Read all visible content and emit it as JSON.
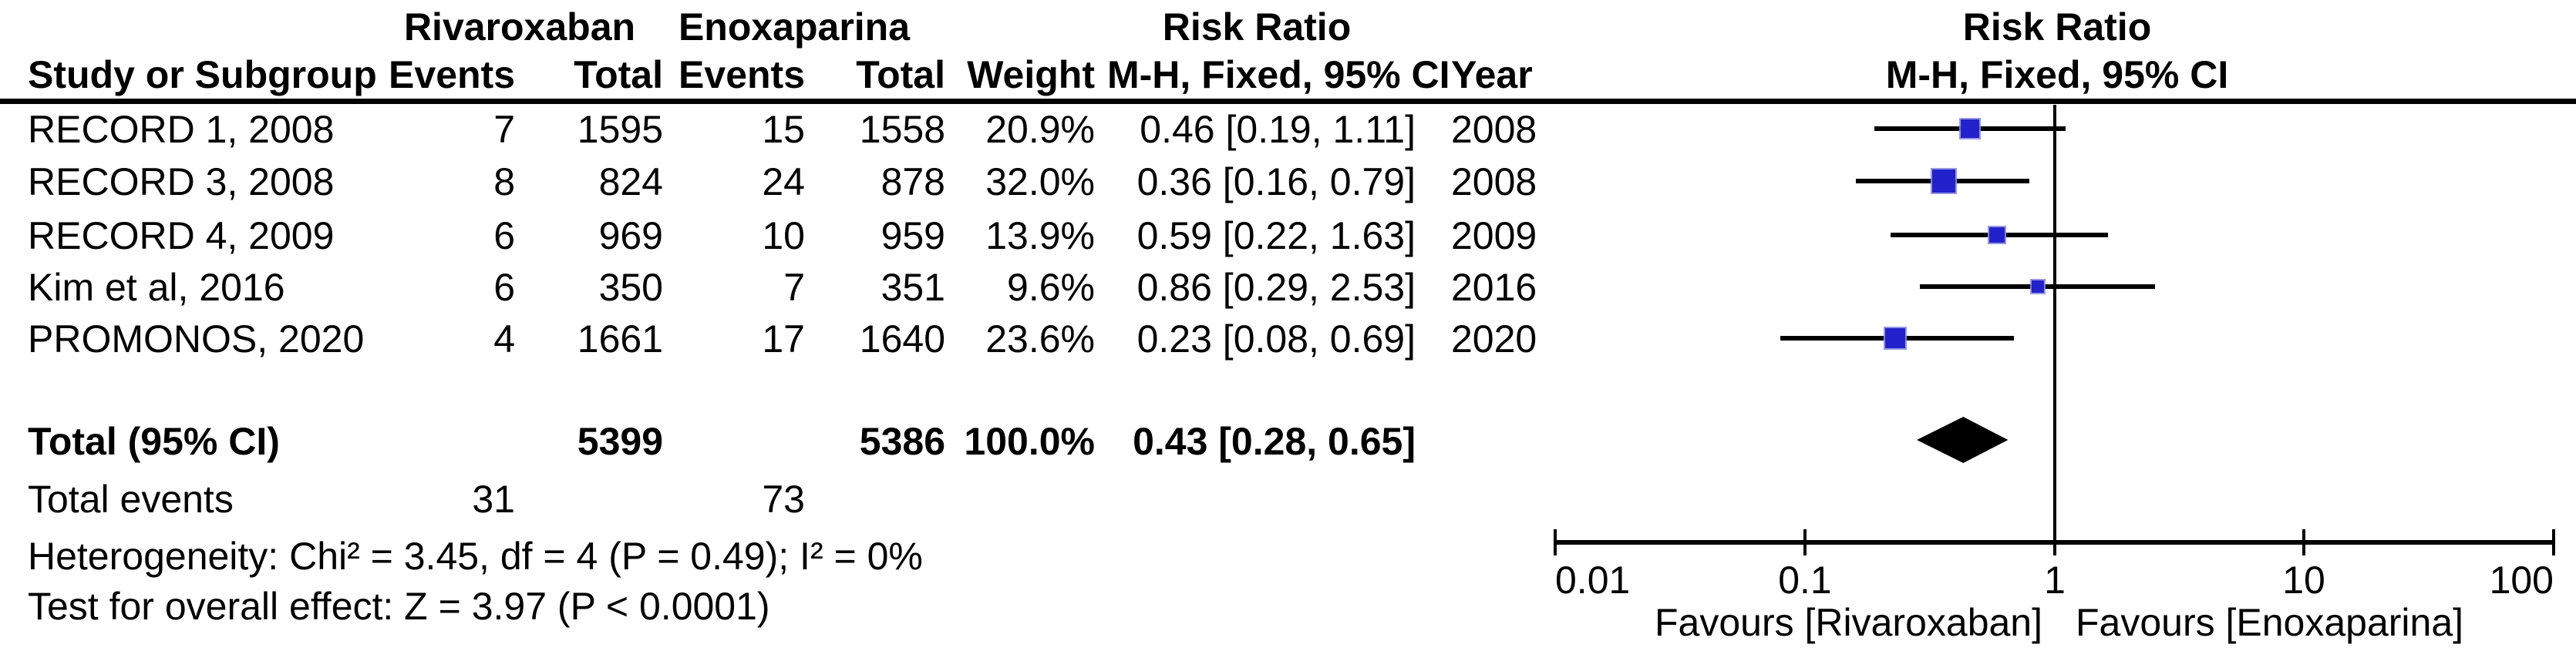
{
  "table": {
    "group_headers": {
      "treatment": "Rivaroxaban",
      "control": "Enoxaparina",
      "risk_ratio": "Risk Ratio"
    },
    "columns": {
      "study": "Study or Subgroup",
      "events1": "Events",
      "total1": "Total",
      "events2": "Events",
      "total2": "Total",
      "weight": "Weight",
      "risk_ratio": "M-H, Fixed, 95% CI",
      "year": "Year"
    },
    "rows": [
      {
        "study": "RECORD 1, 2008",
        "events1": "7",
        "total1": "1595",
        "events2": "15",
        "total2": "1558",
        "weight": "20.9%",
        "risk_ratio": "0.46 [0.19, 1.11]",
        "year": "2008"
      },
      {
        "study": "RECORD 3, 2008",
        "events1": "8",
        "total1": "824",
        "events2": "24",
        "total2": "878",
        "weight": "32.0%",
        "risk_ratio": "0.36 [0.16, 0.79]",
        "year": "2008"
      },
      {
        "study": "RECORD 4, 2009",
        "events1": "6",
        "total1": "969",
        "events2": "10",
        "total2": "959",
        "weight": "13.9%",
        "risk_ratio": "0.59 [0.22, 1.63]",
        "year": "2009"
      },
      {
        "study": "Kim et al, 2016",
        "events1": "6",
        "total1": "350",
        "events2": "7",
        "total2": "351",
        "weight": "9.6%",
        "risk_ratio": "0.86 [0.29, 2.53]",
        "year": "2016"
      },
      {
        "study": "PROMONOS, 2020",
        "events1": "4",
        "total1": "1661",
        "events2": "17",
        "total2": "1640",
        "weight": "23.6%",
        "risk_ratio": "0.23 [0.08, 0.69]",
        "year": "2020"
      }
    ],
    "total_row": {
      "label": "Total (95% CI)",
      "total1": "5399",
      "total2": "5386",
      "weight": "100.0%",
      "risk_ratio": "0.43 [0.28, 0.65]"
    },
    "total_events_row": {
      "label": "Total events",
      "events1": "31",
      "events2": "73"
    },
    "heterogeneity": "Heterogeneity: Chi² = 3.45, df = 4 (P = 0.49); I² = 0%",
    "overall_effect": "Test for overall effect: Z = 3.97 (P < 0.0001)"
  },
  "plot": {
    "header_line1": "Risk Ratio",
    "header_line2": "M-H, Fixed, 95% CI",
    "favours_left": "Favours [Rivaroxaban]",
    "favours_right": "Favours [Enoxaparina]",
    "marker_color": "#2222CC",
    "line_color": "#000000",
    "diamond_color": "#000000"
  },
  "chart_data": {
    "type": "forest",
    "effect_measure": "Risk Ratio, M-H, Fixed, 95% CI",
    "x_scale": "log10",
    "x_range": [
      0.01,
      100
    ],
    "x_ticks": [
      "0.01",
      "0.1",
      "1",
      "10",
      "100"
    ],
    "null_line": 1,
    "studies": [
      {
        "name": "RECORD 1, 2008",
        "rr": 0.46,
        "ci_low": 0.19,
        "ci_high": 1.11,
        "weight_pct": 20.9,
        "year": 2008
      },
      {
        "name": "RECORD 3, 2008",
        "rr": 0.36,
        "ci_low": 0.16,
        "ci_high": 0.79,
        "weight_pct": 32.0,
        "year": 2008
      },
      {
        "name": "RECORD 4, 2009",
        "rr": 0.59,
        "ci_low": 0.22,
        "ci_high": 1.63,
        "weight_pct": 13.9,
        "year": 2009
      },
      {
        "name": "Kim et al, 2016",
        "rr": 0.86,
        "ci_low": 0.29,
        "ci_high": 2.53,
        "weight_pct": 9.6,
        "year": 2016
      },
      {
        "name": "PROMONOS, 2020",
        "rr": 0.23,
        "ci_low": 0.08,
        "ci_high": 0.69,
        "weight_pct": 23.6,
        "year": 2020
      }
    ],
    "total": {
      "rr": 0.43,
      "ci_low": 0.28,
      "ci_high": 0.65,
      "weight_pct": 100.0
    },
    "heterogeneity": {
      "chi2": 3.45,
      "df": 4,
      "p": 0.49,
      "i2_pct": 0
    },
    "overall_effect": {
      "z": 3.97,
      "p": "< 0.0001"
    }
  }
}
